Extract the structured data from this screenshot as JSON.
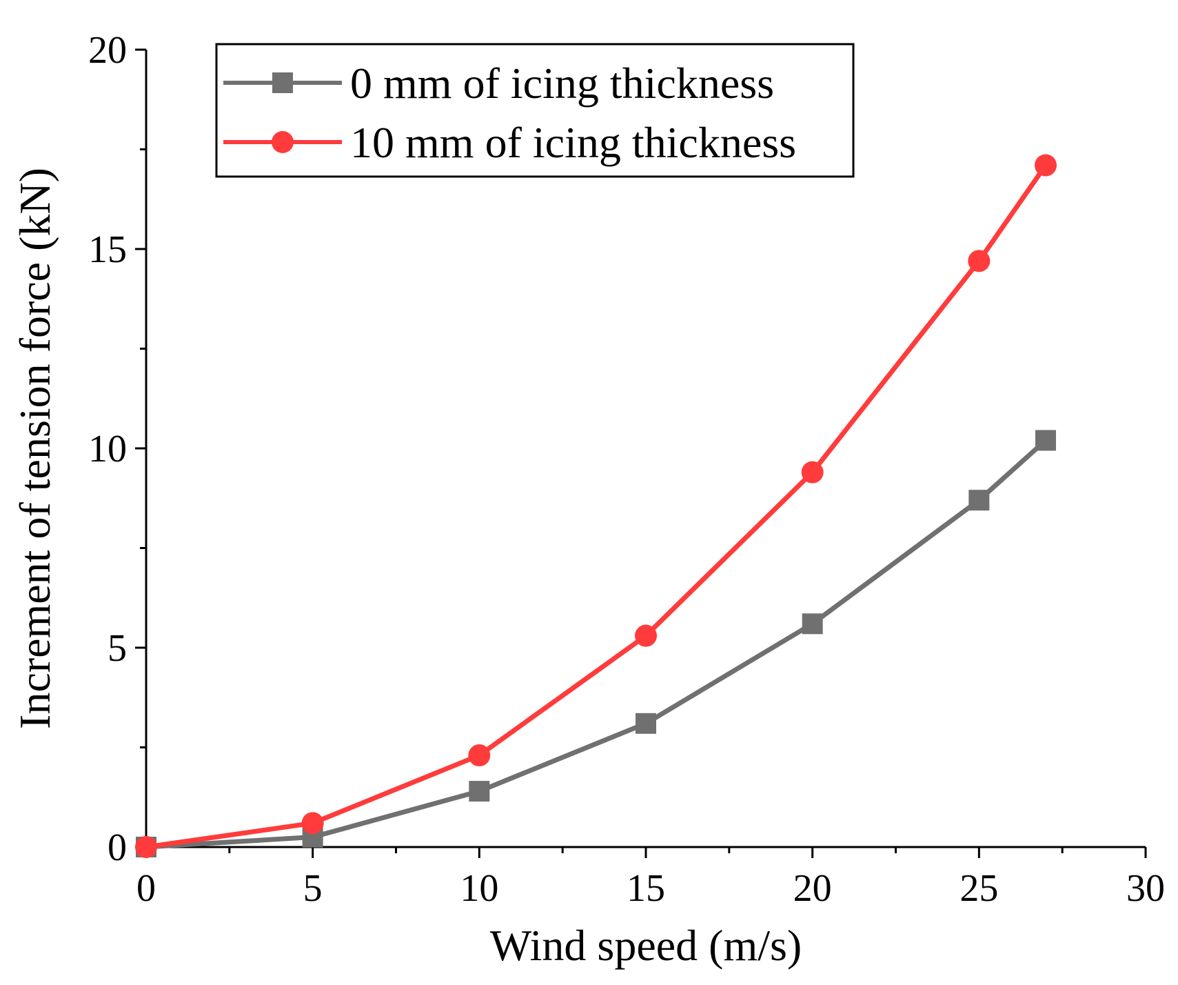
{
  "chart_data": {
    "type": "line",
    "title": "",
    "xlabel": "Wind speed (m/s)",
    "ylabel": "Increment of tension force (kN)",
    "xlim": [
      0,
      30
    ],
    "ylim": [
      0,
      20
    ],
    "x_ticks": [
      0,
      5,
      10,
      15,
      20,
      25,
      30
    ],
    "y_ticks": [
      0,
      5,
      10,
      15,
      20
    ],
    "x_tick_labels": [
      "0",
      "5",
      "10",
      "15",
      "20",
      "25",
      "30"
    ],
    "y_tick_labels": [
      "0",
      "5",
      "10",
      "15",
      "20"
    ],
    "grid": false,
    "legend_position": "top-left",
    "series": [
      {
        "name": "0 mm of icing thickness",
        "color": "#707070",
        "marker": "square",
        "x": [
          0,
          5,
          10,
          15,
          20,
          25,
          27
        ],
        "values": [
          0,
          0.25,
          1.4,
          3.1,
          5.6,
          8.7,
          10.2
        ]
      },
      {
        "name": "10 mm of icing thickness",
        "color": "#ff3b3b",
        "marker": "circle",
        "x": [
          0,
          5,
          10,
          15,
          20,
          25,
          27
        ],
        "values": [
          0,
          0.6,
          2.3,
          5.3,
          9.4,
          14.7,
          17.1
        ]
      }
    ]
  }
}
